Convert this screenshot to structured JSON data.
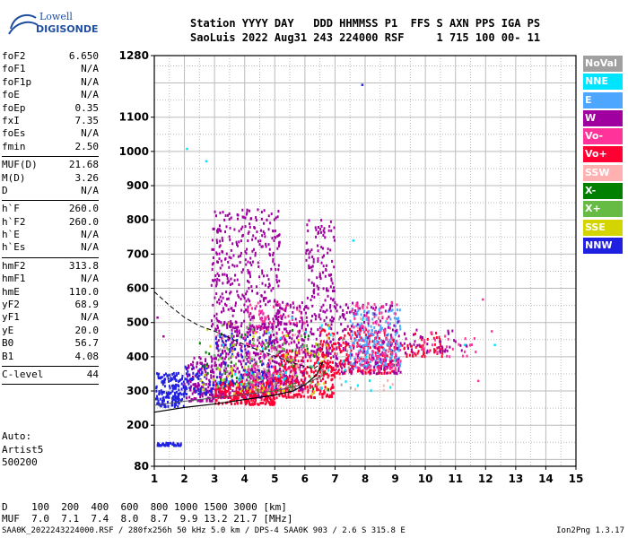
{
  "logo": {
    "line1": "Lowell",
    "line2": "DIGISONDE"
  },
  "header": {
    "line1": "Station YYYY DAY   DDD HHMMSS P1  FFS S AXN PPS IGA PS",
    "line2": "SaoLuis 2022 Aug31 243 224000 RSF     1 715 100 00- 11"
  },
  "params": {
    "group1": [
      {
        "label": "foF2",
        "value": "6.650"
      },
      {
        "label": "foF1",
        "value": "N/A"
      },
      {
        "label": "foF1p",
        "value": "N/A"
      },
      {
        "label": "foE",
        "value": "N/A"
      },
      {
        "label": "foEp",
        "value": "0.35"
      },
      {
        "label": "fxI",
        "value": "7.35"
      },
      {
        "label": "foEs",
        "value": "N/A"
      },
      {
        "label": "fmin",
        "value": "2.50"
      }
    ],
    "group2": [
      {
        "label": "MUF(D)",
        "value": "21.68"
      },
      {
        "label": "M(D)",
        "value": "3.26"
      },
      {
        "label": "D",
        "value": "N/A"
      }
    ],
    "group3": [
      {
        "label": "h`F",
        "value": "260.0"
      },
      {
        "label": "h`F2",
        "value": "260.0"
      },
      {
        "label": "h`E",
        "value": "N/A"
      },
      {
        "label": "h`Es",
        "value": "N/A"
      }
    ],
    "group4": [
      {
        "label": "hmF2",
        "value": "313.8"
      },
      {
        "label": "hmF1",
        "value": "N/A"
      },
      {
        "label": "hmE",
        "value": "110.0"
      },
      {
        "label": "yF2",
        "value": "68.9"
      },
      {
        "label": "yF1",
        "value": "N/A"
      },
      {
        "label": "yE",
        "value": "20.0"
      },
      {
        "label": "B0",
        "value": "56.7"
      },
      {
        "label": "B1",
        "value": "4.08"
      }
    ],
    "group5": [
      {
        "label": "C-level",
        "value": "44"
      }
    ]
  },
  "auto": {
    "line1": "Auto:",
    "line2": "Artist5",
    "line3": "500200"
  },
  "legend": [
    {
      "label": "NoVal",
      "color": "#a0a0a0"
    },
    {
      "label": "NNE",
      "color": "#00e5ff"
    },
    {
      "label": "E",
      "color": "#4da6ff"
    },
    {
      "label": "W",
      "color": "#a000a0"
    },
    {
      "label": "Vo-",
      "color": "#ff3399"
    },
    {
      "label": "Vo+",
      "color": "#ff0033"
    },
    {
      "label": "SSW",
      "color": "#ffb0b0"
    },
    {
      "label": "X-",
      "color": "#008000"
    },
    {
      "label": "X+",
      "color": "#66bb44"
    },
    {
      "label": "SSE",
      "color": "#d4d400"
    },
    {
      "label": "NNW",
      "color": "#2020e0"
    }
  ],
  "dmuf": {
    "d_line": "D    100  200  400  600  800 1000 1500 3000 [km]",
    "muf_line": "MUF  7.0  7.1  7.4  8.0  8.7  9.9 13.2 21.7 [MHz]"
  },
  "footer": {
    "text": "SAA0K_2022243224000.RSF / 280fx256h 50 kHz 5.0 km / DPS-4 SAA0K 903 / 2.6 S 315.8 E",
    "version": "Ion2Png 1.3.17"
  },
  "chart_data": {
    "type": "scatter",
    "xlabel": "",
    "ylabel": "",
    "xlim": [
      1,
      15
    ],
    "ylim": [
      80,
      1280
    ],
    "x_ticks": [
      1,
      2,
      3,
      4,
      5,
      6,
      7,
      8,
      9,
      10,
      11,
      12,
      13,
      14,
      15
    ],
    "y_ticks": [
      80,
      200,
      300,
      400,
      500,
      600,
      700,
      800,
      900,
      1000,
      1100,
      1280
    ],
    "grid": true,
    "legend_position": "right",
    "clusters": [
      {
        "color": "#2020e0",
        "x": [
          1.05,
          2.0
        ],
        "y": [
          254,
          352
        ],
        "n": 170
      },
      {
        "color": "#2020e0",
        "x": [
          1.1,
          1.95
        ],
        "y": [
          140,
          148
        ],
        "n": 35
      },
      {
        "color": "#a000a0",
        "x": [
          2.0,
          3.0
        ],
        "y": [
          270,
          400
        ],
        "n": 150
      },
      {
        "color": "#2020e0",
        "x": [
          2.0,
          3.0
        ],
        "y": [
          290,
          380
        ],
        "n": 60
      },
      {
        "color": "#a000a0",
        "x": [
          3.0,
          5.0
        ],
        "y": [
          280,
          500
        ],
        "n": 420
      },
      {
        "color": "#a000a0",
        "x": [
          2.9,
          5.2
        ],
        "y": [
          480,
          830
        ],
        "n": 380
      },
      {
        "color": "#ff0033",
        "x": [
          3.0,
          5.0
        ],
        "y": [
          260,
          330
        ],
        "n": 260
      },
      {
        "color": "#2020e0",
        "x": [
          3.0,
          5.0
        ],
        "y": [
          310,
          470
        ],
        "n": 100
      },
      {
        "color": "#ff3399",
        "x": [
          4.0,
          6.0
        ],
        "y": [
          300,
          560
        ],
        "n": 180
      },
      {
        "color": "#a000a0",
        "x": [
          5.0,
          6.0
        ],
        "y": [
          300,
          560
        ],
        "n": 220
      },
      {
        "color": "#ff0033",
        "x": [
          5.0,
          7.0
        ],
        "y": [
          280,
          420
        ],
        "n": 260
      },
      {
        "color": "#a000a0",
        "x": [
          6.0,
          7.0
        ],
        "y": [
          400,
          800
        ],
        "n": 200
      },
      {
        "color": "#ff0033",
        "x": [
          6.5,
          9.0
        ],
        "y": [
          350,
          480
        ],
        "n": 280
      },
      {
        "color": "#4da6ff",
        "x": [
          7.5,
          9.2
        ],
        "y": [
          370,
          540
        ],
        "n": 220
      },
      {
        "color": "#a000a0",
        "x": [
          7.0,
          9.2
        ],
        "y": [
          350,
          560
        ],
        "n": 160
      },
      {
        "color": "#ff3399",
        "x": [
          7.5,
          9.2
        ],
        "y": [
          360,
          560
        ],
        "n": 120
      },
      {
        "color": "#66bb44",
        "x": [
          3.0,
          6.5
        ],
        "y": [
          300,
          500
        ],
        "n": 70
      },
      {
        "color": "#d4d400",
        "x": [
          2.5,
          7.0
        ],
        "y": [
          290,
          500
        ],
        "n": 70
      },
      {
        "color": "#008000",
        "x": [
          2.5,
          7.0
        ],
        "y": [
          300,
          480
        ],
        "n": 35
      },
      {
        "color": "#00e5ff",
        "x": [
          3.0,
          9.0
        ],
        "y": [
          300,
          520
        ],
        "n": 40
      },
      {
        "color": "#a0a0a0",
        "x": [
          3.0,
          8.0
        ],
        "y": [
          300,
          520
        ],
        "n": 40
      },
      {
        "color": "#ffb0b0",
        "x": [
          3.0,
          9.0
        ],
        "y": [
          300,
          520
        ],
        "n": 40
      },
      {
        "color": "#ff0033",
        "x": [
          9.2,
          10.6
        ],
        "y": [
          400,
          470
        ],
        "n": 60
      },
      {
        "color": "#a000a0",
        "x": [
          9.3,
          11.4
        ],
        "y": [
          410,
          480
        ],
        "n": 40
      },
      {
        "color": "#ff3399",
        "x": [
          9.5,
          11.8
        ],
        "y": [
          400,
          470
        ],
        "n": 25
      }
    ],
    "outliers": [
      {
        "x": 2.08,
        "y": 1008,
        "color": "#00e5ff"
      },
      {
        "x": 2.72,
        "y": 972,
        "color": "#00e5ff"
      },
      {
        "x": 7.9,
        "y": 1195,
        "color": "#2020e0"
      },
      {
        "x": 1.1,
        "y": 515,
        "color": "#a000a0"
      },
      {
        "x": 1.3,
        "y": 460,
        "color": "#a000a0"
      },
      {
        "x": 12.3,
        "y": 435,
        "color": "#00e5ff"
      },
      {
        "x": 11.9,
        "y": 568,
        "color": "#ff3399"
      },
      {
        "x": 10.2,
        "y": 472,
        "color": "#ff3399"
      },
      {
        "x": 11.3,
        "y": 435,
        "color": "#00e5ff"
      },
      {
        "x": 12.2,
        "y": 475,
        "color": "#ff3399"
      },
      {
        "x": 7.6,
        "y": 740,
        "color": "#00e5ff"
      },
      {
        "x": 11.75,
        "y": 330,
        "color": "#ff3399"
      }
    ],
    "profile_curve": {
      "x": [
        1.0,
        2.0,
        3.0,
        4.0,
        5.0,
        5.6,
        6.0,
        6.4,
        6.6
      ],
      "y": [
        238,
        252,
        262,
        275,
        288,
        300,
        318,
        348,
        385
      ]
    },
    "dashed_curve": {
      "x": [
        1.0,
        1.5,
        2.0,
        2.5,
        3.0,
        3.5,
        4.0,
        4.5,
        5.0,
        5.5,
        6.0,
        6.3,
        6.6
      ],
      "y": [
        590,
        550,
        515,
        490,
        475,
        455,
        435,
        418,
        402,
        385,
        372,
        365,
        385
      ]
    },
    "secondary_curve": {
      "x": [
        1.0,
        2.0,
        3.0,
        4.0,
        5.0,
        6.0,
        6.6
      ],
      "y": [
        258,
        270,
        280,
        290,
        300,
        320,
        345
      ]
    }
  }
}
